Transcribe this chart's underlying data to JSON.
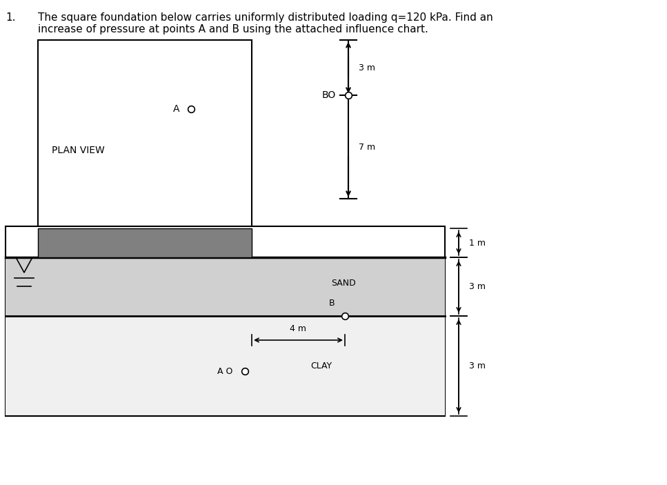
{
  "title_num": "1.",
  "title_text": "The square foundation below carries uniformly distributed loading q=120 kPa. Find an\nincrease of pressure at points A and B using the attached influence chart.",
  "bg_color": "#ffffff",
  "plan_view_label": "PLAN VIEW",
  "point_A_label_plan": "A",
  "point_B_label_plan": "BO",
  "dim_3m_top": "3 m",
  "dim_7m": "7 m",
  "sand_label": "SAND",
  "clay_label": "CLAY",
  "point_A_label_section": "A O",
  "point_B_label_section": "B",
  "dim_4m": "4 m",
  "dim_1m": "1 m",
  "dim_3m_right1": "3 m",
  "dim_3m_right2": "3 m",
  "gray_foundation_color": "#808080",
  "sand_hatch_color": "#c8c8c8",
  "border_color": "#000000"
}
